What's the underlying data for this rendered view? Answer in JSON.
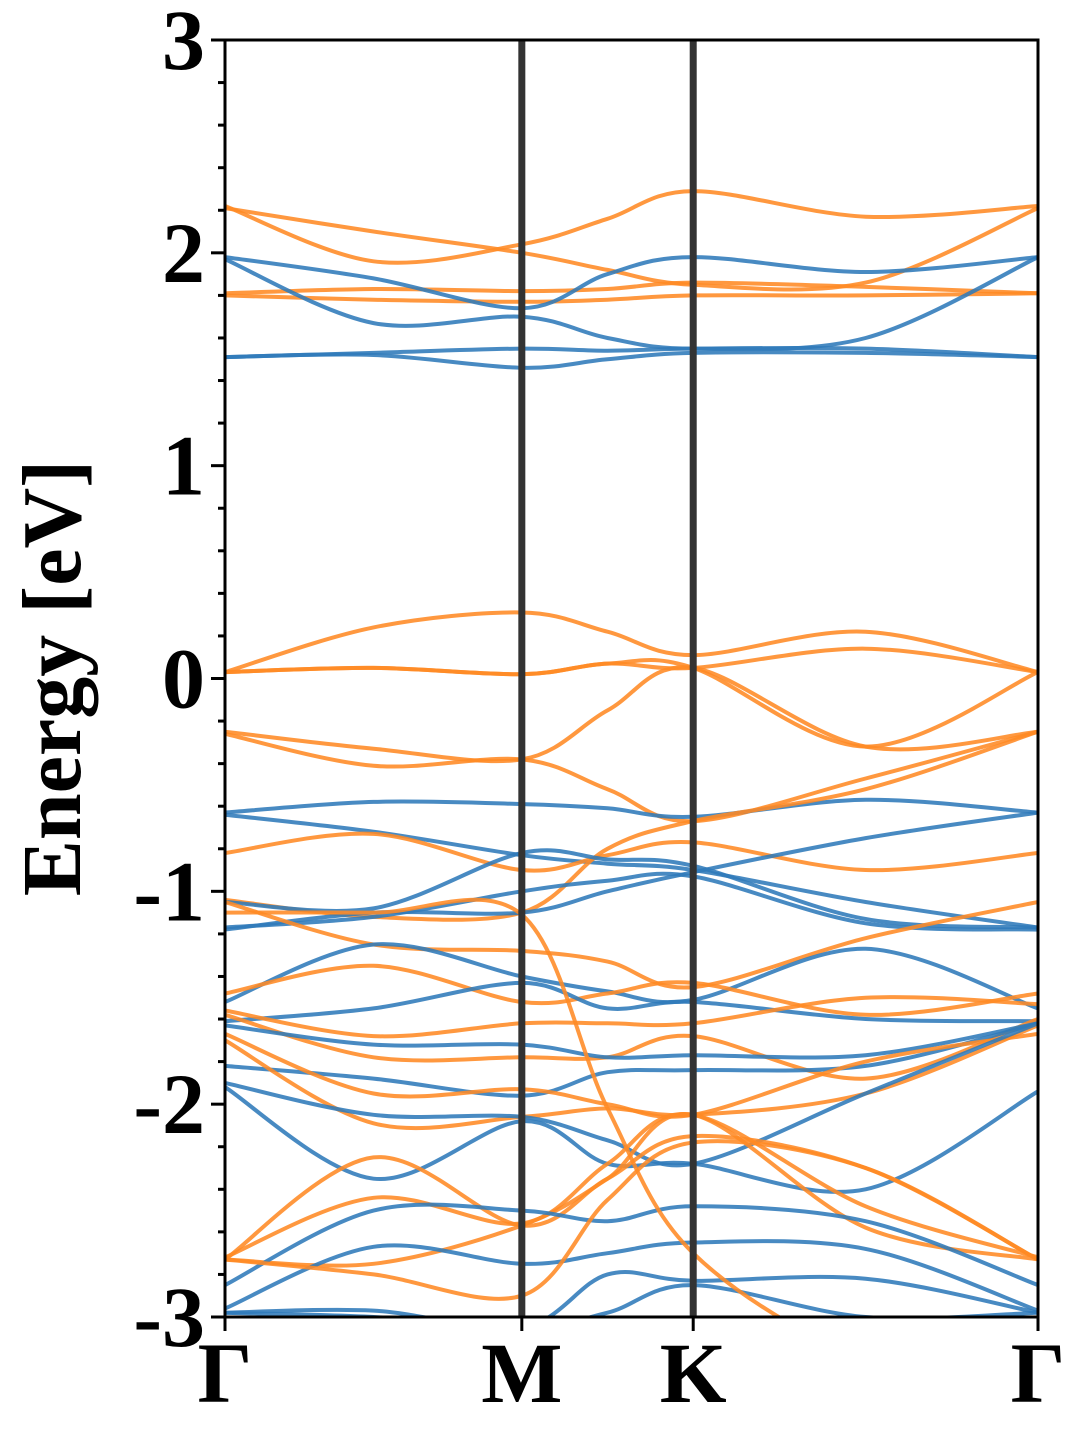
{
  "chart_data": {
    "type": "line",
    "title": "",
    "xlabel": "",
    "ylabel": "Energy [eV]",
    "ylim": [
      -3,
      3
    ],
    "yticks": [
      "3",
      "2",
      "1",
      "0",
      "-1",
      "-2",
      "-3"
    ],
    "kpath": [
      {
        "label": "Γ",
        "pos": 0.0
      },
      {
        "label": "M",
        "pos": 0.3651
      },
      {
        "label": "K",
        "pos": 0.5759
      },
      {
        "label": "Γ",
        "pos": 1.0
      }
    ],
    "colors": {
      "spin_up": "#2f7ab9",
      "spin_down": "#ff8a24",
      "kline": "#333333"
    },
    "x": [
      0.0,
      0.1826,
      0.3651,
      0.4705,
      0.5759,
      0.788,
      1.0
    ],
    "series": [
      {
        "group": "spin_down",
        "values": [
          2.22,
          1.96,
          2.04,
          2.16,
          2.29,
          2.17,
          2.22
        ]
      },
      {
        "group": "spin_down",
        "values": [
          2.21,
          2.1,
          2.0,
          1.92,
          1.85,
          1.86,
          2.21
        ]
      },
      {
        "group": "spin_down",
        "values": [
          1.81,
          1.83,
          1.82,
          1.83,
          1.86,
          1.84,
          1.81
        ]
      },
      {
        "group": "spin_down",
        "values": [
          1.8,
          1.78,
          1.77,
          1.78,
          1.8,
          1.8,
          1.81
        ]
      },
      {
        "group": "spin_up",
        "values": [
          1.98,
          1.88,
          1.74,
          1.9,
          1.98,
          1.91,
          1.98
        ]
      },
      {
        "group": "spin_up",
        "values": [
          1.97,
          1.67,
          1.7,
          1.6,
          1.55,
          1.6,
          1.98
        ]
      },
      {
        "group": "spin_up",
        "values": [
          1.51,
          1.53,
          1.55,
          1.54,
          1.55,
          1.55,
          1.51
        ]
      },
      {
        "group": "spin_up",
        "values": [
          1.51,
          1.52,
          1.46,
          1.5,
          1.53,
          1.53,
          1.51
        ]
      },
      {
        "group": "spin_down",
        "values": [
          0.03,
          0.24,
          0.31,
          0.22,
          0.11,
          0.22,
          0.03
        ]
      },
      {
        "group": "spin_down",
        "values": [
          0.03,
          0.05,
          0.02,
          0.07,
          0.05,
          0.14,
          0.03
        ]
      },
      {
        "group": "spin_down",
        "values": [
          0.03,
          0.05,
          0.02,
          0.07,
          0.05,
          -0.32,
          0.03
        ]
      },
      {
        "group": "spin_down",
        "values": [
          -0.25,
          -0.33,
          -0.38,
          -0.15,
          0.05,
          -0.32,
          -0.25
        ]
      },
      {
        "group": "spin_down",
        "values": [
          -0.26,
          -0.41,
          -0.38,
          -0.52,
          -0.67,
          -0.47,
          -0.25
        ]
      },
      {
        "group": "spin_up",
        "values": [
          -0.63,
          -0.58,
          -0.59,
          -0.61,
          -0.65,
          -0.57,
          -0.63
        ]
      },
      {
        "group": "spin_up",
        "values": [
          -0.64,
          -0.72,
          -0.83,
          -0.87,
          -0.9,
          -1.05,
          -1.17
        ]
      },
      {
        "group": "spin_down",
        "values": [
          -0.82,
          -0.73,
          -0.9,
          -0.83,
          -0.77,
          -0.9,
          -0.82
        ]
      },
      {
        "group": "spin_down",
        "values": [
          -1.04,
          -1.12,
          -1.1,
          -0.8,
          -0.67,
          -0.52,
          -0.25
        ]
      },
      {
        "group": "spin_up",
        "values": [
          -1.05,
          -1.08,
          -0.82,
          -0.85,
          -0.88,
          -1.13,
          -1.17
        ]
      },
      {
        "group": "spin_up",
        "values": [
          -1.17,
          -1.12,
          -1.0,
          -0.95,
          -0.93,
          -1.15,
          -1.18
        ]
      },
      {
        "group": "spin_up",
        "values": [
          -1.18,
          -1.1,
          -1.1,
          -1.0,
          -0.91,
          -0.75,
          -0.63
        ]
      },
      {
        "group": "spin_down",
        "values": [
          -1.05,
          -1.25,
          -1.28,
          -1.33,
          -1.45,
          -1.22,
          -1.05
        ]
      },
      {
        "group": "spin_up",
        "values": [
          -1.52,
          -1.25,
          -1.4,
          -1.47,
          -1.51,
          -1.27,
          -1.55
        ]
      },
      {
        "group": "spin_down",
        "values": [
          -1.48,
          -1.35,
          -1.52,
          -1.48,
          -1.43,
          -1.58,
          -1.48
        ]
      },
      {
        "group": "spin_up",
        "values": [
          -1.61,
          -1.55,
          -1.43,
          -1.55,
          -1.52,
          -1.6,
          -1.61
        ]
      },
      {
        "group": "spin_down",
        "values": [
          -1.56,
          -1.68,
          -1.62,
          -1.62,
          -1.62,
          -1.5,
          -1.53
        ]
      },
      {
        "group": "spin_down",
        "values": [
          -1.58,
          -1.78,
          -1.78,
          -1.78,
          -1.68,
          -1.88,
          -1.6
        ]
      },
      {
        "group": "spin_up",
        "values": [
          -1.63,
          -1.72,
          -1.72,
          -1.78,
          -1.77,
          -1.77,
          -1.62
        ]
      },
      {
        "group": "spin_up",
        "values": [
          -1.82,
          -1.88,
          -1.96,
          -1.85,
          -1.84,
          -1.82,
          -1.62
        ]
      },
      {
        "group": "spin_down",
        "values": [
          -1.67,
          -1.95,
          -1.93,
          -2.0,
          -2.05,
          -1.8,
          -1.67
        ]
      },
      {
        "group": "spin_down",
        "values": [
          -1.7,
          -2.09,
          -2.06,
          -2.02,
          -2.05,
          -1.95,
          -1.63
        ]
      },
      {
        "group": "spin_up",
        "values": [
          -1.9,
          -2.05,
          -2.06,
          -2.17,
          -2.28,
          -1.95,
          -1.62
        ]
      },
      {
        "group": "spin_up",
        "values": [
          -1.92,
          -2.35,
          -2.08,
          -2.28,
          -2.28,
          -2.4,
          -1.94
        ]
      },
      {
        "group": "spin_down",
        "values": [
          -2.73,
          -2.25,
          -2.57,
          -2.35,
          -2.15,
          -2.3,
          -2.73
        ]
      },
      {
        "group": "spin_down",
        "values": [
          -2.72,
          -2.44,
          -2.56,
          -2.28,
          -2.05,
          -2.48,
          -2.72
        ]
      },
      {
        "group": "spin_down",
        "values": [
          -2.73,
          -2.75,
          -2.57,
          -2.35,
          -2.05,
          -2.58,
          -2.73
        ]
      },
      {
        "group": "spin_up",
        "values": [
          -2.85,
          -2.5,
          -2.5,
          -2.55,
          -2.48,
          -2.55,
          -2.85
        ]
      },
      {
        "group": "spin_up",
        "values": [
          -2.96,
          -2.67,
          -2.75,
          -2.7,
          -2.65,
          -2.68,
          -2.97
        ]
      },
      {
        "group": "spin_down",
        "values": [
          -2.73,
          -2.8,
          -2.9,
          -2.45,
          -2.18,
          -2.3,
          -2.73
        ]
      },
      {
        "group": "spin_up",
        "values": [
          -2.98,
          -2.97,
          -3.05,
          -2.8,
          -2.83,
          -2.82,
          -2.98
        ]
      },
      {
        "group": "spin_up",
        "values": [
          -2.98,
          -3.0,
          -3.05,
          -2.98,
          -2.85,
          -3.0,
          -2.98
        ]
      },
      {
        "group": "spin_down",
        "values": [
          -1.1,
          -1.1,
          -1.11,
          -2.02,
          -2.7,
          -3.2,
          -3.3
        ]
      }
    ]
  }
}
